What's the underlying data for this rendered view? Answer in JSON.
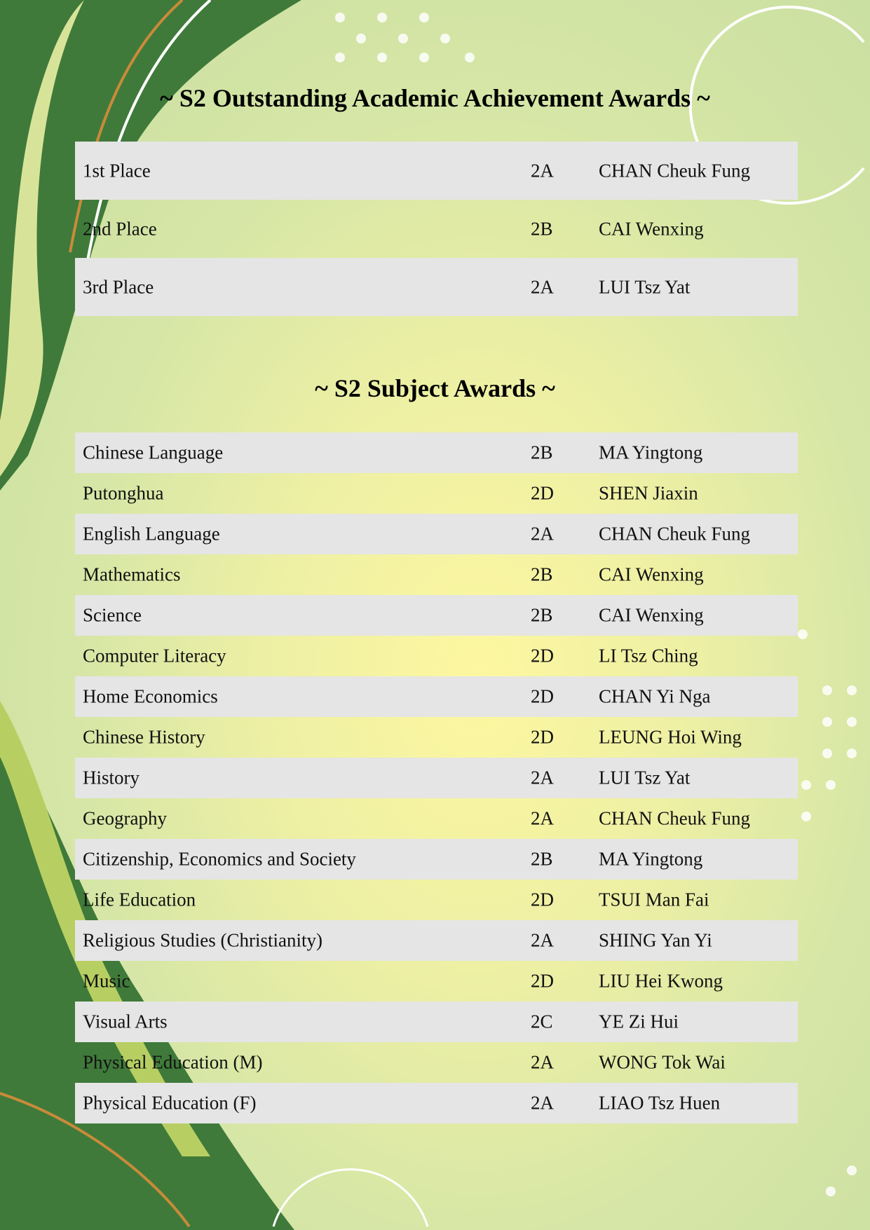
{
  "colors": {
    "dark_green": "#3f7a3a",
    "mid_green": "#8fb54a",
    "gold": "#c98b3a",
    "row_shade": "#e5e5e5"
  },
  "outstanding": {
    "title": "~ S2 Outstanding Academic Achievement Awards ~",
    "rows": [
      {
        "award": "1st Place",
        "class": "2A",
        "name": "CHAN Cheuk Fung"
      },
      {
        "award": "2nd Place",
        "class": "2B",
        "name": "CAI Wenxing"
      },
      {
        "award": "3rd Place",
        "class": "2A",
        "name": "LUI Tsz Yat"
      }
    ]
  },
  "subject": {
    "title": "~ S2 Subject Awards ~",
    "rows": [
      {
        "award": "Chinese Language",
        "class": "2B",
        "name": "MA Yingtong"
      },
      {
        "award": "Putonghua",
        "class": "2D",
        "name": "SHEN Jiaxin"
      },
      {
        "award": "English Language",
        "class": "2A",
        "name": "CHAN Cheuk Fung"
      },
      {
        "award": "Mathematics",
        "class": "2B",
        "name": "CAI Wenxing"
      },
      {
        "award": "Science",
        "class": "2B",
        "name": "CAI Wenxing"
      },
      {
        "award": "Computer Literacy",
        "class": "2D",
        "name": "LI Tsz Ching"
      },
      {
        "award": "Home Economics",
        "class": "2D",
        "name": "CHAN Yi Nga"
      },
      {
        "award": "Chinese History",
        "class": "2D",
        "name": "LEUNG Hoi Wing"
      },
      {
        "award": "History",
        "class": "2A",
        "name": "LUI Tsz Yat"
      },
      {
        "award": "Geography",
        "class": "2A",
        "name": "CHAN Cheuk Fung"
      },
      {
        "award": "Citizenship, Economics and Society",
        "class": "2B",
        "name": "MA Yingtong"
      },
      {
        "award": "Life Education",
        "class": "2D",
        "name": "TSUI Man Fai"
      },
      {
        "award": "Religious Studies (Christianity)",
        "class": "2A",
        "name": "SHING Yan Yi"
      },
      {
        "award": "Music",
        "class": "2D",
        "name": "LIU Hei Kwong"
      },
      {
        "award": "Visual Arts",
        "class": "2C",
        "name": "YE Zi Hui"
      },
      {
        "award": "Physical Education (M)",
        "class": "2A",
        "name": "WONG Tok Wai"
      },
      {
        "award": "Physical Education (F)",
        "class": "2A",
        "name": "LIAO Tsz Huen"
      }
    ]
  }
}
